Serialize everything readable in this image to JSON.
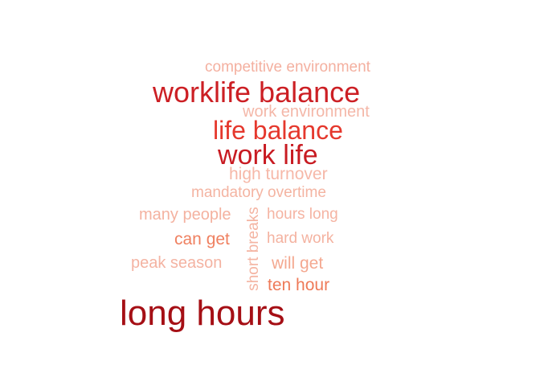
{
  "words": [
    {
      "text": "competitive environment",
      "color": "#f4b0a0"
    },
    {
      "text": "worklife balance",
      "color": "#cc1f24"
    },
    {
      "text": "work environment",
      "color": "#f4b7a8"
    },
    {
      "text": "life balance",
      "color": "#e5382d"
    },
    {
      "text": "work life",
      "color": "#c81b22"
    },
    {
      "text": "high turnover",
      "color": "#f6b8a8"
    },
    {
      "text": "mandatory overtime",
      "color": "#f4b4a2"
    },
    {
      "text": "many people",
      "color": "#f4b2a0"
    },
    {
      "text": "hours long",
      "color": "#f5b4a3"
    },
    {
      "text": "can get",
      "color": "#ef8060"
    },
    {
      "text": "hard work",
      "color": "#f4b2a0"
    },
    {
      "text": "peak season",
      "color": "#f4b3a2"
    },
    {
      "text": "will get",
      "color": "#f4a890"
    },
    {
      "text": "ten hour",
      "color": "#ee7a58"
    },
    {
      "text": "long hours",
      "color": "#a50f15"
    },
    {
      "text": "short breaks",
      "color": "#f4b4a2"
    }
  ]
}
